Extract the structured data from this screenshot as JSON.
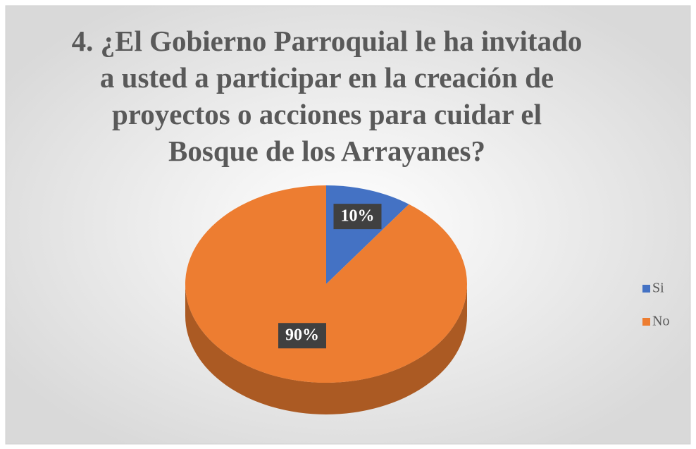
{
  "chart_data": {
    "type": "pie",
    "title": "4. ¿El Gobierno Parroquial le ha invitado a usted a participar en la creación de proyectos o acciones para cuidar el Bosque de los Arrayanes?",
    "categories": [
      "Si",
      "No"
    ],
    "values": [
      10,
      90
    ],
    "value_labels": [
      "10%",
      "90%"
    ],
    "colors": [
      "#4472c4",
      "#ed7d31"
    ],
    "legend": "right"
  }
}
